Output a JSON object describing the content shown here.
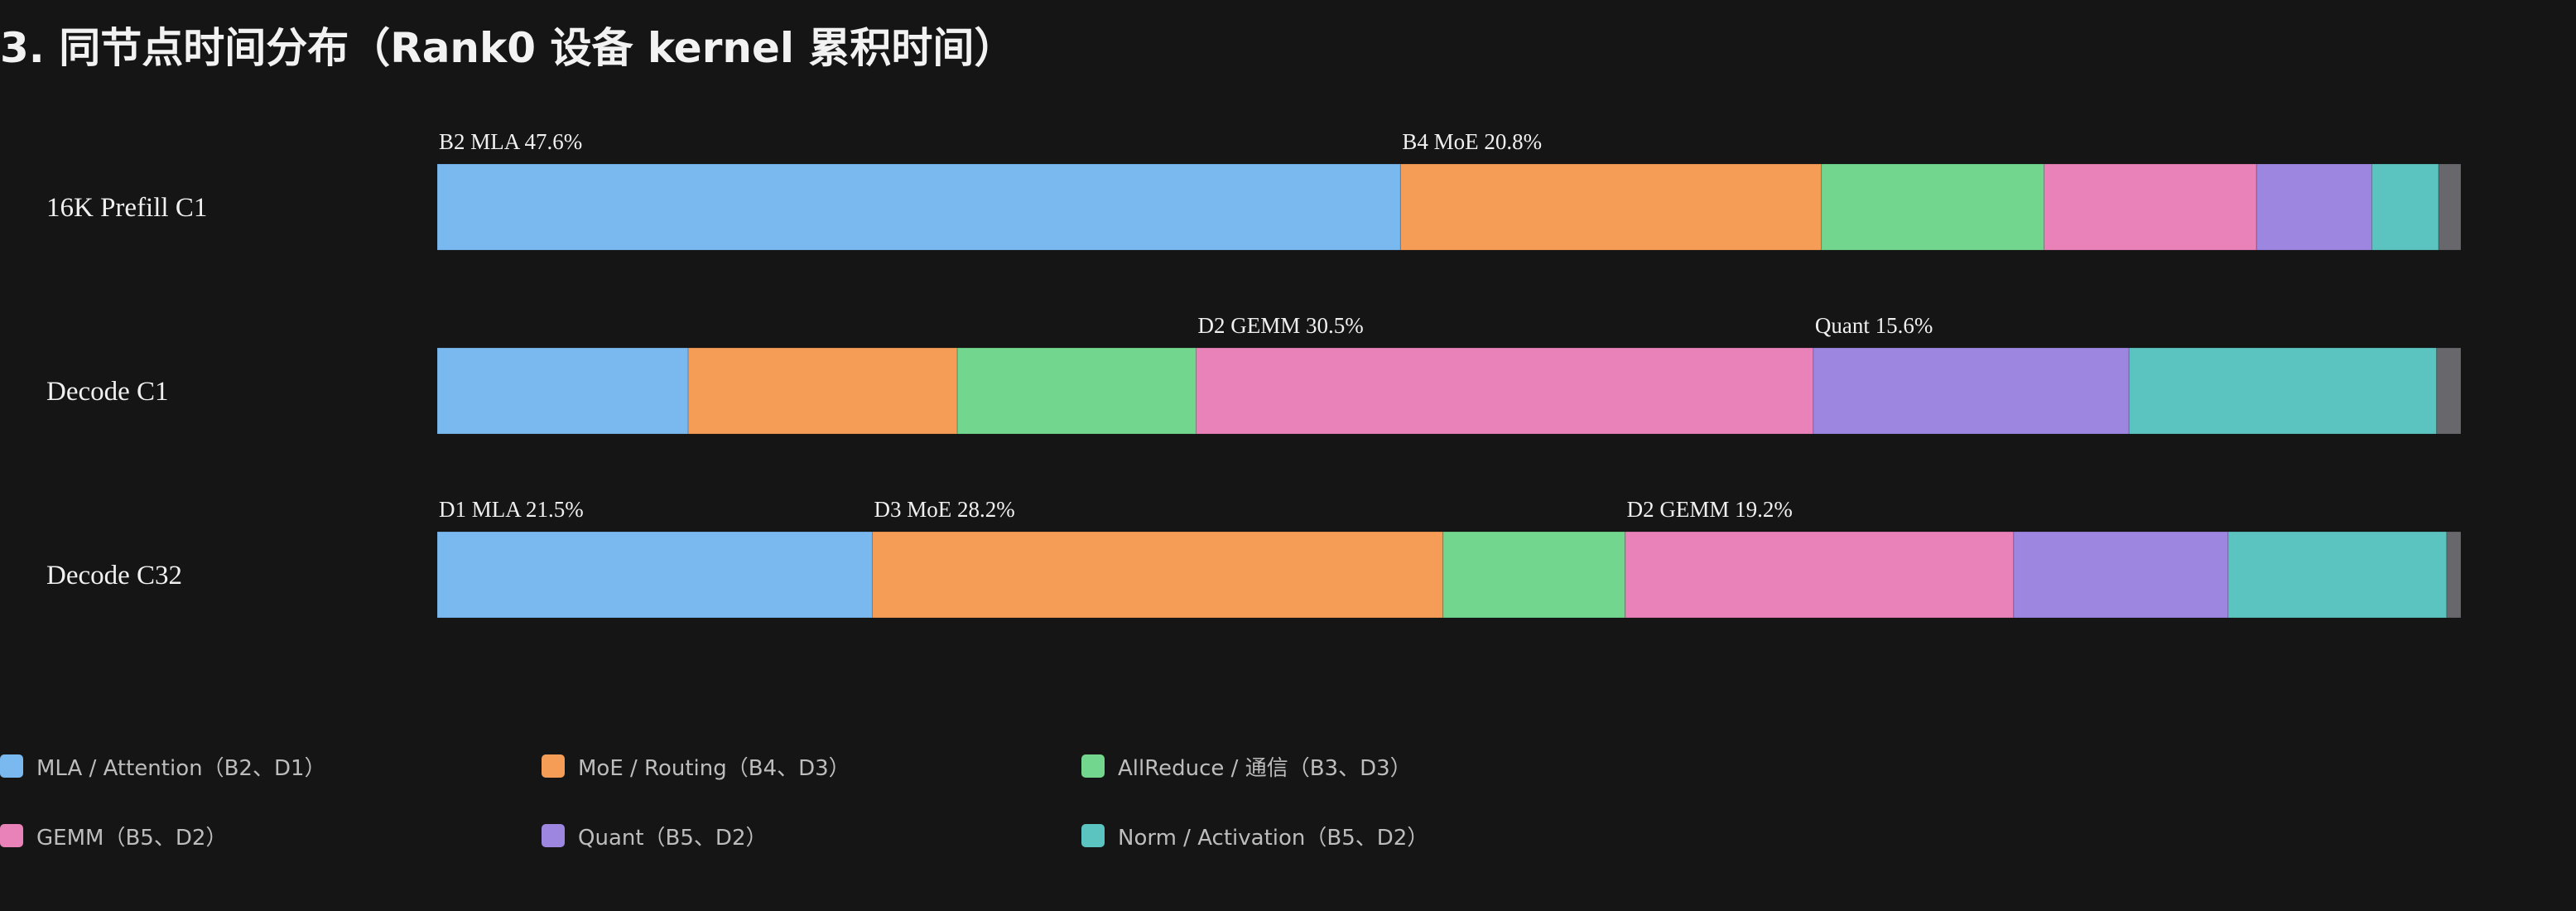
{
  "title": "3. 同节点时间分布（Rank0 设备 kernel 累积时间）",
  "chart_data": {
    "type": "bar",
    "orientation": "horizontal",
    "stacked": true,
    "normalized": true,
    "unit": "%",
    "xlim": [
      0,
      100
    ],
    "grid": false,
    "categories": [
      "16K Prefill C1",
      "Decode C1",
      "Decode C32"
    ],
    "series": [
      {
        "name": "MLA / Attention（B2、D1）",
        "color": "#7ab8f0",
        "values": [
          47.6,
          12.4,
          21.5
        ]
      },
      {
        "name": "MoE / Routing（B4、D3）",
        "color": "#f59d57",
        "values": [
          20.8,
          13.3,
          28.2
        ]
      },
      {
        "name": "AllReduce / 通信（B3、D3）",
        "color": "#72d68e",
        "values": [
          11.0,
          11.8,
          9.0
        ]
      },
      {
        "name": "GEMM（B5、D2）",
        "color": "#e882b8",
        "values": [
          10.5,
          30.5,
          19.2
        ]
      },
      {
        "name": "Quant（B5、D2）",
        "color": "#9d86e0",
        "values": [
          5.7,
          15.6,
          10.6
        ]
      },
      {
        "name": "Norm / Activation（B5、D2）",
        "color": "#5cc4c0",
        "values": [
          3.3,
          15.2,
          10.8
        ]
      },
      {
        "name": "",
        "color": "#68686c",
        "values": [
          1.1,
          1.2,
          0.7
        ]
      }
    ],
    "segment_labels": [
      [
        "B2 MLA 47.6%",
        "B4 MoE 20.8%",
        "",
        "",
        "",
        "",
        ""
      ],
      [
        "",
        "",
        "",
        "D2 GEMM 30.5%",
        "Quant 15.6%",
        "",
        ""
      ],
      [
        "D1 MLA 21.5%",
        "D3 MoE 28.2%",
        "",
        "D2 GEMM 19.2%",
        "",
        "",
        ""
      ]
    ],
    "legend_position": "bottom"
  }
}
